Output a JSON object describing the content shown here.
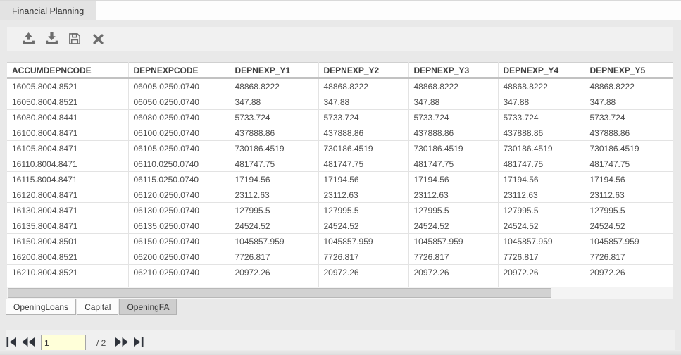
{
  "window": {
    "tab_title": "Financial Planning"
  },
  "toolbar": {
    "buttons": [
      {
        "name": "upload"
      },
      {
        "name": "download"
      },
      {
        "name": "save"
      },
      {
        "name": "close"
      }
    ]
  },
  "table": {
    "columns": [
      "ACCUMDEPNCODE",
      "DEPNEXPCODE",
      "DEPNEXP_Y1",
      "DEPNEXP_Y2",
      "DEPNEXP_Y3",
      "DEPNEXP_Y4",
      "DEPNEXP_Y5"
    ],
    "rows": [
      [
        "16005.8004.8521",
        "06005.0250.0740",
        "48868.8222",
        "48868.8222",
        "48868.8222",
        "48868.8222",
        "48868.8222"
      ],
      [
        "16050.8004.8521",
        "06050.0250.0740",
        "347.88",
        "347.88",
        "347.88",
        "347.88",
        "347.88"
      ],
      [
        "16080.8004.8441",
        "06080.0250.0740",
        "5733.724",
        "5733.724",
        "5733.724",
        "5733.724",
        "5733.724"
      ],
      [
        "16100.8004.8471",
        "06100.0250.0740",
        "437888.86",
        "437888.86",
        "437888.86",
        "437888.86",
        "437888.86"
      ],
      [
        "16105.8004.8471",
        "06105.0250.0740",
        "730186.4519",
        "730186.4519",
        "730186.4519",
        "730186.4519",
        "730186.4519"
      ],
      [
        "16110.8004.8471",
        "06110.0250.0740",
        "481747.75",
        "481747.75",
        "481747.75",
        "481747.75",
        "481747.75"
      ],
      [
        "16115.8004.8471",
        "06115.0250.0740",
        "17194.56",
        "17194.56",
        "17194.56",
        "17194.56",
        "17194.56"
      ],
      [
        "16120.8004.8471",
        "06120.0250.0740",
        "23112.63",
        "23112.63",
        "23112.63",
        "23112.63",
        "23112.63"
      ],
      [
        "16130.8004.8471",
        "06130.0250.0740",
        "127995.5",
        "127995.5",
        "127995.5",
        "127995.5",
        "127995.5"
      ],
      [
        "16135.8004.8471",
        "06135.0250.0740",
        "24524.52",
        "24524.52",
        "24524.52",
        "24524.52",
        "24524.52"
      ],
      [
        "16150.8004.8501",
        "06150.0250.0740",
        "1045857.959",
        "1045857.959",
        "1045857.959",
        "1045857.959",
        "1045857.959"
      ],
      [
        "16200.8004.8521",
        "06200.0250.0740",
        "7726.817",
        "7726.817",
        "7726.817",
        "7726.817",
        "7726.817"
      ],
      [
        "16210.8004.8521",
        "06210.0250.0740",
        "20972.26",
        "20972.26",
        "20972.26",
        "20972.26",
        "20972.26"
      ]
    ]
  },
  "sheet_tabs": {
    "tabs": [
      "OpeningLoans",
      "Capital",
      "OpeningFA"
    ],
    "active_tab": "OpeningFA"
  },
  "pagination": {
    "current_page": "1",
    "page_separator": "/ 2",
    "total_pages": 2
  },
  "colors": {
    "page_bg": "#e9e9e9",
    "toolbar_bg": "#f1f1f1",
    "app_tab_bg": "#e3e3e3",
    "active_sheet_tab_bg": "#cecece",
    "page_input_bg": "#ffffd9",
    "toolbar_icon": "#6d6d6d",
    "pager_icon": "#30343c",
    "grid_line": "#e3e3e3"
  }
}
